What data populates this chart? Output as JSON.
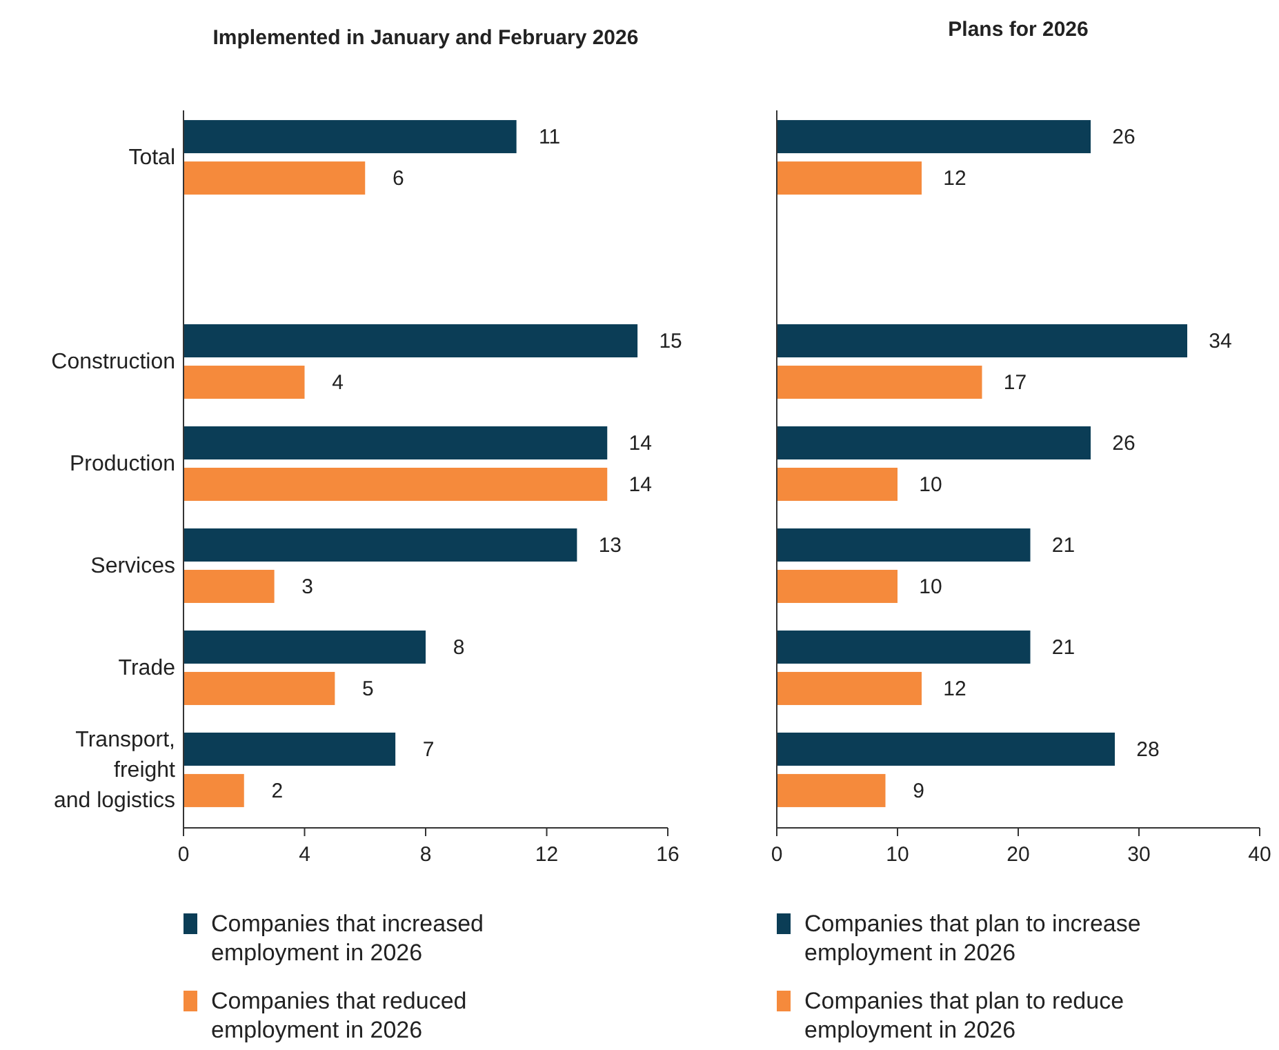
{
  "chart_data": [
    {
      "type": "bar",
      "orientation": "horizontal",
      "title": "Implemented in January and February 2026",
      "categories": [
        "Total",
        null,
        "Construction",
        "Production",
        "Services",
        "Trade",
        "Transport, freight and logistics"
      ],
      "series": [
        {
          "name": "Companies that increased employment in 2026",
          "color": "#0b3d56",
          "values": [
            11,
            null,
            15,
            14,
            13,
            8,
            7
          ]
        },
        {
          "name": "Companies that reduced employment in 2026",
          "color": "#f58a3c",
          "values": [
            6,
            null,
            4,
            14,
            3,
            5,
            2
          ]
        }
      ],
      "xlim": [
        0,
        16
      ],
      "xticks": [
        0,
        4,
        8,
        12,
        16
      ],
      "grid": false,
      "legend": "bottom",
      "data_labels": true
    },
    {
      "type": "bar",
      "orientation": "horizontal",
      "title": "Plans for 2026",
      "categories": [
        null,
        null,
        null,
        null,
        null,
        null,
        null
      ],
      "series": [
        {
          "name": "Companies that plan to increase employment in 2026",
          "color": "#0b3d56",
          "values": [
            26,
            null,
            34,
            26,
            21,
            21,
            28
          ]
        },
        {
          "name": "Companies that plan to reduce employment in 2026",
          "color": "#f58a3c",
          "values": [
            12,
            null,
            17,
            10,
            10,
            12,
            9
          ]
        }
      ],
      "xlim": [
        0,
        40
      ],
      "xticks": [
        0,
        10,
        20,
        30,
        40
      ],
      "grid": false,
      "legend": "bottom",
      "data_labels": true,
      "tick_labels": "x"
    }
  ]
}
